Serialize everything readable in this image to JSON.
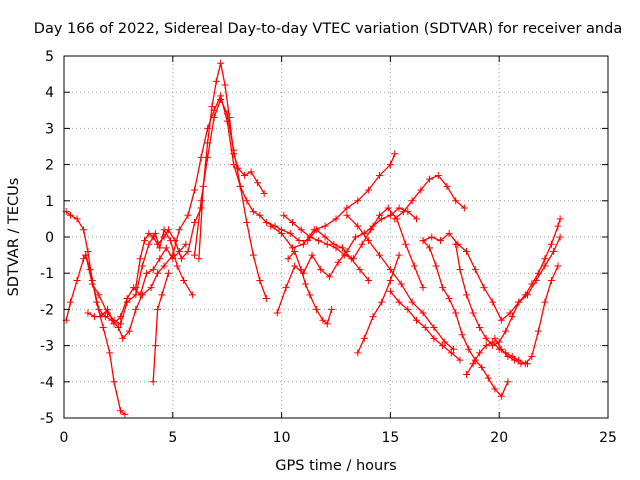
{
  "chart_data": {
    "type": "scatter",
    "title": "Day 166 of 2022, Sidereal Day-to-day VTEC variation (SDTVAR) for receiver anda",
    "xlabel": "GPS time / hours",
    "ylabel": "SDTVAR / TECUs",
    "xlim": [
      0,
      25
    ],
    "ylim": [
      -5,
      5
    ],
    "xticks": [
      0,
      5,
      10,
      15,
      20,
      25
    ],
    "yticks": [
      -5,
      -4,
      -3,
      -2,
      -1,
      0,
      1,
      2,
      3,
      4,
      5
    ],
    "grid": true,
    "marker": "plus",
    "color": "#ff0000",
    "series": [
      {
        "name": "trace-1",
        "x": [
          0.1,
          0.3,
          0.6,
          0.9,
          1.0,
          1.2,
          1.5,
          1.8,
          2.1,
          2.3,
          2.6,
          2.8
        ],
        "y": [
          -2.3,
          -1.8,
          -1.2,
          -0.6,
          -0.5,
          -0.9,
          -1.8,
          -2.5,
          -3.2,
          -4.0,
          -4.8,
          -4.9
        ]
      },
      {
        "name": "trace-2",
        "x": [
          0.1,
          0.3,
          0.6,
          0.9,
          1.1,
          1.3,
          1.6,
          1.9,
          2.2,
          2.5,
          2.7,
          3.0,
          3.3,
          3.6,
          4.0,
          4.3,
          4.6,
          5.0,
          5.3,
          5.7,
          6.0,
          6.3,
          6.6,
          6.9,
          7.2,
          7.5,
          7.8,
          8.1,
          8.4,
          8.7,
          9.0,
          9.3
        ],
        "y": [
          0.7,
          0.6,
          0.5,
          0.2,
          -0.4,
          -1.2,
          -2.0,
          -2.2,
          -2.3,
          -2.5,
          -2.8,
          -2.6,
          -2.0,
          -1.6,
          -1.4,
          -1.0,
          -0.8,
          -0.5,
          0.2,
          0.6,
          1.3,
          2.2,
          3.0,
          3.5,
          3.9,
          3.2,
          2.0,
          1.4,
          0.4,
          -0.5,
          -1.2,
          -1.7
        ]
      },
      {
        "name": "trace-3",
        "x": [
          1.1,
          1.4,
          1.7,
          2.0,
          2.3,
          2.6,
          2.9,
          3.2,
          3.5,
          3.8,
          4.1,
          4.4,
          4.7,
          5.0,
          5.3,
          5.6
        ],
        "y": [
          -2.1,
          -2.2,
          -2.2,
          -2.0,
          -2.4,
          -2.2,
          -1.7,
          -1.4,
          -1.6,
          -1.0,
          -0.9,
          -0.6,
          -0.3,
          -0.6,
          -0.4,
          -0.2
        ]
      },
      {
        "name": "trace-4",
        "x": [
          1.0,
          1.3,
          1.6,
          2.0,
          2.3,
          2.6,
          2.9,
          3.3,
          3.6,
          3.9,
          4.2,
          4.4,
          4.6,
          4.9,
          5.2,
          5.5,
          5.9
        ],
        "y": [
          -0.5,
          -1.3,
          -1.6,
          -2.1,
          -2.3,
          -2.4,
          -1.8,
          -1.6,
          -0.8,
          -0.2,
          0.1,
          -0.3,
          0.2,
          -0.1,
          -0.8,
          -1.2,
          -1.6
        ]
      },
      {
        "name": "trace-5",
        "x": [
          3.3,
          3.5,
          3.7,
          3.9,
          4.1,
          4.3,
          4.6,
          4.8,
          5.1,
          5.4,
          5.7,
          6.0,
          6.3
        ],
        "y": [
          -1.4,
          -0.6,
          -0.1,
          0.1,
          0.0,
          -0.2,
          0.0,
          0.2,
          -0.1,
          -0.6,
          -0.4,
          0.4,
          0.8
        ]
      },
      {
        "name": "trace-6",
        "x": [
          4.1,
          4.2,
          4.3,
          4.5,
          4.8
        ],
        "y": [
          -4.0,
          -3.0,
          -2.0,
          -1.6,
          -1.0
        ]
      },
      {
        "name": "trace-7",
        "x": [
          6.2,
          6.4,
          6.6,
          6.8,
          7.0,
          7.2,
          7.4,
          7.6,
          7.8,
          8.0,
          8.3,
          8.6,
          8.9,
          9.2
        ],
        "y": [
          -0.6,
          1.4,
          2.6,
          3.6,
          4.3,
          4.8,
          4.2,
          3.3,
          2.3,
          1.9,
          1.7,
          1.8,
          1.5,
          1.2
        ]
      },
      {
        "name": "trace-8",
        "x": [
          6.0,
          6.3,
          6.6,
          6.9,
          7.2,
          7.5,
          7.8,
          8.1,
          8.4,
          8.7,
          9.0,
          9.3,
          9.7,
          10.0,
          10.4,
          10.8,
          11.2,
          11.6,
          12.0,
          12.4,
          12.8,
          13.2,
          13.6,
          14.0
        ],
        "y": [
          -0.5,
          1.0,
          2.2,
          3.3,
          3.8,
          3.4,
          2.4,
          1.4,
          1.0,
          0.7,
          0.6,
          0.4,
          0.3,
          0.2,
          0.1,
          -0.1,
          -0.1,
          0.2,
          0.0,
          -0.2,
          -0.3,
          -0.6,
          -0.9,
          -1.2
        ]
      },
      {
        "name": "trace-9",
        "x": [
          9.5,
          10.0,
          10.5,
          11.0,
          11.5,
          12.0,
          12.5,
          13.0,
          13.5,
          14.0,
          14.5,
          15.0,
          15.2
        ],
        "y": [
          0.3,
          0.1,
          -0.3,
          -0.2,
          0.2,
          0.3,
          0.5,
          0.8,
          1.0,
          1.3,
          1.7,
          2.0,
          2.3
        ]
      },
      {
        "name": "trace-10",
        "x": [
          9.8,
          10.2,
          10.6,
          11.0,
          11.4,
          11.8,
          12.2,
          12.6,
          13.0,
          13.4,
          13.8,
          14.2,
          14.6,
          15.0,
          15.4,
          15.8,
          16.2
        ],
        "y": [
          -2.1,
          -1.4,
          -0.8,
          -1.0,
          -0.5,
          -0.9,
          -1.1,
          -0.7,
          -0.4,
          0.0,
          0.1,
          0.3,
          0.5,
          0.6,
          0.8,
          0.7,
          0.5
        ]
      },
      {
        "name": "trace-11",
        "x": [
          10.3,
          10.6,
          10.9,
          11.1,
          11.3,
          11.6,
          11.9,
          12.1,
          12.3
        ],
        "y": [
          -0.6,
          -0.4,
          -0.9,
          -1.3,
          -1.6,
          -2.0,
          -2.3,
          -2.4,
          -2.0
        ]
      },
      {
        "name": "trace-12",
        "x": [
          10.1,
          10.5,
          10.9,
          11.3,
          11.7,
          12.1,
          12.5,
          12.9,
          13.3,
          13.7,
          14.1,
          14.5,
          14.9,
          15.3,
          15.7,
          16.1,
          16.5
        ],
        "y": [
          0.6,
          0.4,
          0.2,
          0.0,
          -0.1,
          -0.2,
          -0.3,
          -0.5,
          -0.6,
          -0.2,
          0.2,
          0.6,
          0.8,
          0.5,
          -0.2,
          -0.8,
          -1.4
        ]
      },
      {
        "name": "trace-13",
        "x": [
          13.0,
          13.5,
          14.0,
          14.5,
          15.0,
          15.5,
          16.0,
          16.5,
          17.0,
          17.5,
          17.9
        ],
        "y": [
          0.6,
          0.3,
          -0.1,
          -0.5,
          -0.9,
          -1.3,
          -1.8,
          -2.1,
          -2.5,
          -2.9,
          -3.1
        ]
      },
      {
        "name": "trace-14",
        "x": [
          13.5,
          13.8,
          14.2,
          14.6,
          15.0,
          15.4
        ],
        "y": [
          -3.2,
          -2.8,
          -2.2,
          -1.8,
          -1.2,
          -0.5
        ]
      },
      {
        "name": "trace-15",
        "x": [
          15.0,
          15.4,
          15.8,
          16.2,
          16.6,
          17.0,
          17.4,
          17.8,
          18.2
        ],
        "y": [
          -1.5,
          -1.8,
          -2.0,
          -2.3,
          -2.5,
          -2.8,
          -3.0,
          -3.2,
          -3.4
        ]
      },
      {
        "name": "trace-16",
        "x": [
          15.2,
          15.6,
          16.0,
          16.4,
          16.8,
          17.2,
          17.6,
          18.0,
          18.4
        ],
        "y": [
          0.5,
          0.7,
          1.0,
          1.3,
          1.6,
          1.7,
          1.4,
          1.0,
          0.8
        ]
      },
      {
        "name": "trace-17",
        "x": [
          16.5,
          16.8,
          17.1,
          17.4,
          17.7,
          18.0,
          18.3,
          18.6,
          18.9,
          19.2,
          19.5,
          19.8,
          20.1,
          20.4
        ],
        "y": [
          -0.1,
          -0.3,
          -0.8,
          -1.4,
          -1.7,
          -2.1,
          -2.7,
          -3.1,
          -3.4,
          -3.6,
          -3.9,
          -4.2,
          -4.4,
          -4.0
        ]
      },
      {
        "name": "trace-18",
        "x": [
          16.5,
          16.9,
          17.3,
          17.7,
          18.1,
          18.5,
          18.9,
          19.3,
          19.7,
          20.1,
          20.5,
          20.9,
          21.3,
          21.7,
          22.1,
          22.5,
          22.8
        ],
        "y": [
          -0.1,
          0.0,
          -0.1,
          0.1,
          -0.2,
          -0.4,
          -0.9,
          -1.4,
          -1.8,
          -2.3,
          -2.1,
          -1.8,
          -1.6,
          -1.2,
          -0.8,
          -0.4,
          0.0
        ]
      },
      {
        "name": "trace-19",
        "x": [
          18.0,
          18.2,
          18.5,
          18.8,
          19.1,
          19.4,
          19.7,
          20.0,
          20.3,
          20.6,
          20.9,
          21.2,
          21.5,
          21.8,
          22.1,
          22.4,
          22.7,
          22.8
        ],
        "y": [
          -0.2,
          -0.9,
          -1.6,
          -2.1,
          -2.5,
          -2.8,
          -3.0,
          -2.9,
          -2.6,
          -2.2,
          -1.8,
          -1.6,
          -1.3,
          -1.0,
          -0.6,
          -0.2,
          0.3,
          0.5
        ]
      },
      {
        "name": "trace-20",
        "x": [
          18.5,
          18.8,
          19.1,
          19.4,
          19.7,
          20.0,
          20.3,
          20.6,
          20.9,
          21.2,
          21.5,
          21.8,
          22.1,
          22.4,
          22.7
        ],
        "y": [
          -3.8,
          -3.5,
          -3.2,
          -3.0,
          -2.9,
          -3.1,
          -3.2,
          -3.3,
          -3.4,
          -3.5,
          -3.3,
          -2.6,
          -1.8,
          -1.2,
          -0.8
        ]
      },
      {
        "name": "trace-21",
        "x": [
          19.8,
          20.1,
          20.4,
          20.7,
          21.0,
          21.3
        ],
        "y": [
          -2.8,
          -3.1,
          -3.3,
          -3.4,
          -3.5,
          -3.5
        ]
      }
    ]
  }
}
